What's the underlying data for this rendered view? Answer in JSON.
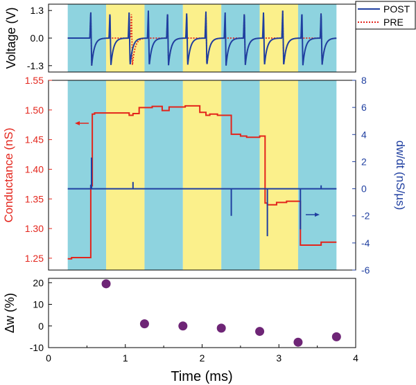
{
  "colors": {
    "cyan": "#8ed3df",
    "yellow": "#fbf08b",
    "post": "#1f3fa0",
    "pre": "#e3241b",
    "conductance": "#e3241b",
    "dwdt": "#1f3fa0",
    "dots": "#6e2576",
    "axis": "#000000"
  },
  "chart_data": [
    {
      "type": "line",
      "name": "voltage-panel",
      "ylabel": "Voltage (V)",
      "ylim": [
        -1.6,
        1.6
      ],
      "yticks": [
        -1.3,
        0.0,
        1.3
      ],
      "ytick_labels": [
        "-1.3",
        "0.0",
        "1.3"
      ],
      "xlim": [
        0,
        4
      ],
      "background_bands": {
        "start": 0.25,
        "width": 0.5,
        "colors": [
          "cyan",
          "yellow",
          "cyan",
          "yellow",
          "cyan",
          "yellow",
          "cyan"
        ]
      },
      "legend": {
        "placement": "top-right",
        "entries": [
          "POST",
          "PRE"
        ]
      },
      "series": [
        {
          "name": "POST",
          "style": "solid",
          "spike_times": [
            0.55,
            0.8,
            1.05,
            1.3,
            1.55,
            1.8,
            2.05,
            2.3,
            2.55,
            2.8,
            3.05,
            3.3,
            3.55
          ],
          "peak": 1.3,
          "trough": -1.3
        },
        {
          "name": "PRE",
          "style": "dotted",
          "spike_times": [
            0.55,
            1.08,
            1.55,
            2.05,
            2.55,
            3.05,
            3.55
          ],
          "peak": 1.3,
          "trough": -1.3
        }
      ]
    },
    {
      "type": "line",
      "name": "conductance-panel",
      "ylabel": "Conductance (nS)",
      "ylim": [
        1.23,
        1.55
      ],
      "yticks": [
        1.25,
        1.3,
        1.35,
        1.4,
        1.45,
        1.5,
        1.55
      ],
      "ytick_labels": [
        "1.25",
        "1.30",
        "1.35",
        "1.40",
        "1.45",
        "1.50",
        "1.55"
      ],
      "y2label": "dw/dt (nS/µs)",
      "y2lim": [
        -6,
        8
      ],
      "y2ticks": [
        -6,
        -4,
        -2,
        0,
        2,
        4,
        6,
        8
      ],
      "y2tick_labels": [
        "-6",
        "-4",
        "-2",
        "0",
        "2",
        "4",
        "6",
        "8"
      ],
      "xlim": [
        0,
        4
      ],
      "series": [
        {
          "name": "Conductance",
          "axis": "left",
          "x": [
            0.25,
            0.3,
            0.3,
            0.55,
            0.55,
            0.57,
            0.57,
            0.6,
            0.6,
            1.05,
            1.05,
            1.1,
            1.1,
            1.18,
            1.18,
            1.35,
            1.35,
            1.48,
            1.48,
            1.57,
            1.57,
            1.78,
            1.78,
            1.97,
            1.97,
            2.05,
            2.05,
            2.1,
            2.1,
            2.2,
            2.2,
            2.38,
            2.38,
            2.5,
            2.5,
            2.58,
            2.58,
            2.75,
            2.75,
            2.82,
            2.82,
            2.85,
            2.85,
            2.97,
            2.97,
            3.1,
            3.1,
            3.28,
            3.28,
            3.55,
            3.55,
            3.75
          ],
          "y": [
            1.249,
            1.249,
            1.251,
            1.251,
            1.372,
            1.372,
            1.493,
            1.493,
            1.495,
            1.495,
            1.491,
            1.491,
            1.494,
            1.494,
            1.504,
            1.504,
            1.506,
            1.506,
            1.499,
            1.499,
            1.505,
            1.505,
            1.507,
            1.507,
            1.496,
            1.496,
            1.491,
            1.491,
            1.493,
            1.493,
            1.491,
            1.491,
            1.459,
            1.459,
            1.456,
            1.456,
            1.454,
            1.454,
            1.456,
            1.456,
            1.343,
            1.343,
            1.34,
            1.34,
            1.344,
            1.344,
            1.346,
            1.346,
            1.272,
            1.272,
            1.277,
            1.277
          ]
        },
        {
          "name": "dw/dt",
          "axis": "right",
          "baseline": 0,
          "xlim_baseline": [
            0.25,
            3.75
          ],
          "spikes": [
            {
              "x": 0.55,
              "value": 0.3
            },
            {
              "x": 0.56,
              "value": 2.3
            },
            {
              "x": 1.1,
              "value": 0.5
            },
            {
              "x": 2.38,
              "value": -2.0
            },
            {
              "x": 2.85,
              "value": -3.5
            },
            {
              "x": 3.28,
              "value": -3.0
            },
            {
              "x": 3.55,
              "value": 0.25
            }
          ]
        }
      ]
    },
    {
      "type": "scatter",
      "name": "dw-panel",
      "ylabel": "Δw (%)",
      "xlabel": "Time (ms)",
      "ylim": [
        -10,
        22
      ],
      "yticks": [
        -10,
        0,
        10,
        20
      ],
      "ytick_labels": [
        "-10",
        "0",
        "10",
        "20"
      ],
      "xlim": [
        0,
        4
      ],
      "xticks": [
        0,
        1,
        2,
        3,
        4
      ],
      "xtick_labels": [
        "0",
        "1",
        "2",
        "3",
        "4"
      ],
      "series": [
        {
          "name": "Δw",
          "x": [
            0.75,
            1.25,
            1.75,
            2.25,
            2.75,
            3.25,
            3.75
          ],
          "y": [
            19.5,
            1.0,
            0.0,
            -1.0,
            -2.5,
            -7.5,
            -5.0
          ]
        }
      ]
    }
  ]
}
